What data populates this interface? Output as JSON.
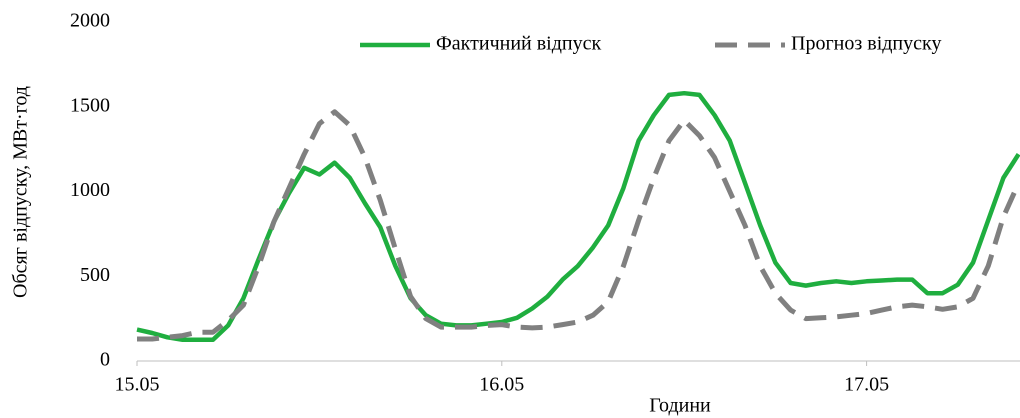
{
  "chart_data": {
    "type": "line",
    "y_label": "Обсяг відпуску, МВт·год",
    "x_label": "Години",
    "categories": [
      "15.05",
      null,
      null,
      null,
      null,
      null,
      null,
      null,
      null,
      null,
      null,
      null,
      null,
      null,
      null,
      null,
      null,
      null,
      null,
      null,
      null,
      null,
      null,
      null,
      "16.05",
      null,
      null,
      null,
      null,
      null,
      null,
      null,
      null,
      null,
      null,
      null,
      null,
      null,
      null,
      null,
      null,
      null,
      null,
      null,
      null,
      null,
      null,
      null,
      "17.05",
      null,
      null,
      null,
      null,
      null,
      null,
      null,
      null,
      null,
      null
    ],
    "series": [
      {
        "name": "Фактичний відпуск",
        "color": "#1fae3f",
        "dash": false,
        "values": [
          185,
          165,
          140,
          125,
          125,
          125,
          210,
          370,
          600,
          820,
          990,
          1140,
          1100,
          1170,
          1080,
          930,
          790,
          560,
          370,
          270,
          220,
          210,
          210,
          220,
          230,
          255,
          310,
          380,
          480,
          560,
          670,
          800,
          1020,
          1300,
          1450,
          1570,
          1580,
          1570,
          1450,
          1300,
          1050,
          800,
          580,
          460,
          445,
          460,
          470,
          460,
          470,
          475,
          480,
          480,
          400,
          400,
          450,
          580,
          830,
          1080,
          1220
        ]
      },
      {
        "name": "Прогноз відпуску",
        "color": "#808080",
        "dash": true,
        "values": [
          130,
          130,
          140,
          150,
          170,
          170,
          240,
          330,
          560,
          820,
          1020,
          1220,
          1400,
          1470,
          1390,
          1200,
          950,
          660,
          380,
          250,
          200,
          200,
          200,
          210,
          215,
          200,
          195,
          200,
          215,
          230,
          270,
          350,
          560,
          830,
          1080,
          1300,
          1420,
          1330,
          1200,
          1000,
          800,
          560,
          400,
          300,
          250,
          255,
          260,
          270,
          280,
          300,
          320,
          330,
          320,
          305,
          320,
          370,
          560,
          850,
          1050
        ]
      }
    ],
    "ylim": [
      0,
      2000
    ],
    "yticks": [
      0,
      500,
      1000,
      1500,
      2000
    ],
    "grid": false,
    "legend": "top-right"
  }
}
